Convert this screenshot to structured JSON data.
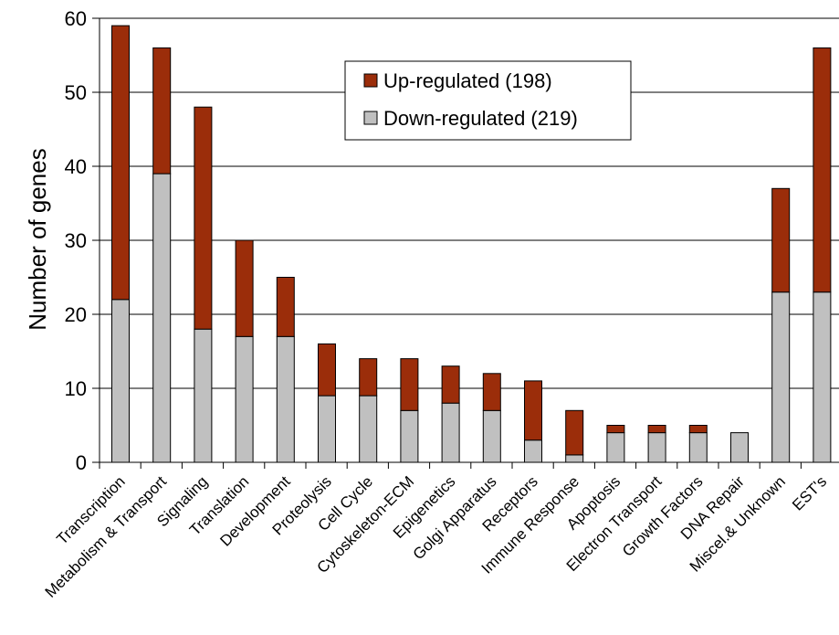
{
  "chart_data": {
    "type": "bar",
    "stacked": true,
    "title": "",
    "xlabel": "",
    "ylabel": "Number of genes",
    "ylim": [
      0,
      60
    ],
    "yticks": [
      0,
      10,
      20,
      30,
      40,
      50,
      60
    ],
    "grid": true,
    "legend_position": "top-center",
    "categories": [
      "Transcription",
      "Metabolism & Transport",
      "Signaling",
      "Translation",
      "Development",
      "Proteolysis",
      "Cell Cycle",
      "Cytoskeleton-ECM",
      "Epigenetics",
      "Golgi Apparatus",
      "Receptors",
      "Immune Response",
      "Apoptosis",
      "Electron Transport",
      "Growth Factors",
      "DNA Repair",
      "Miscel.& Unknown",
      "EST's"
    ],
    "series": [
      {
        "name": "Down-regulated (219)",
        "color": "#c0c0c0",
        "values": [
          22,
          39,
          18,
          17,
          17,
          9,
          9,
          7,
          8,
          7,
          3,
          1,
          4,
          4,
          4,
          4,
          23,
          23
        ]
      },
      {
        "name": "Up-regulated (198)",
        "color": "#9b2d0a",
        "values": [
          37,
          17,
          30,
          13,
          8,
          7,
          5,
          7,
          5,
          5,
          8,
          6,
          1,
          1,
          1,
          0,
          14,
          33
        ]
      }
    ]
  }
}
